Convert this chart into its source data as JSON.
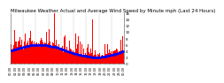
{
  "title": "Milwaukee Weather Actual and Average Wind Speed by Minute mph (Last 24 Hours)",
  "title_fontsize": 4.0,
  "num_points": 1440,
  "bar_color": "#ff0000",
  "dot_color": "#0000ff",
  "background_color": "#ffffff",
  "plot_bg_color": "#ffffff",
  "grid_color": "#aaaaaa",
  "ylim": [
    0,
    16
  ],
  "yticks": [
    0,
    2,
    4,
    6,
    8,
    10,
    12,
    14,
    16
  ],
  "ylabel_fontsize": 3.0,
  "xlabel_fontsize": 2.5,
  "num_vgrid": 9,
  "num_xticks": 25
}
